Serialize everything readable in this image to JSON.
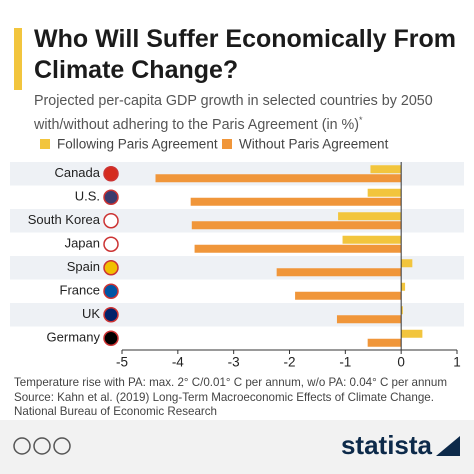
{
  "chart_data": {
    "type": "bar",
    "orientation": "horizontal",
    "title": "Who Will Suffer Economically From Climate Change?",
    "subtitle": "Projected per-capita GDP growth in selected countries by 2050 with/without adhering to the Paris Agreement (in %)",
    "subtitle_marker": "*",
    "categories": [
      "Canada",
      "U.S.",
      "South Korea",
      "Japan",
      "Spain",
      "France",
      "UK",
      "Germany"
    ],
    "series": [
      {
        "name": "Following Paris Agreement",
        "color": "#f2c53d",
        "values": [
          -0.55,
          -0.6,
          -1.13,
          -1.05,
          0.2,
          0.07,
          0.03,
          0.38
        ]
      },
      {
        "name": "Without Paris Agreement",
        "color": "#f0963a",
        "values": [
          -4.4,
          -3.77,
          -3.75,
          -3.7,
          -2.23,
          -1.9,
          -1.15,
          -0.6
        ]
      }
    ],
    "xlim": [
      -5,
      1
    ],
    "xticks": [
      -5,
      -4,
      -3,
      -2,
      -1,
      0,
      1
    ],
    "grid": false,
    "notes": [
      "Temperature rise with PA: max. 2° C/0.01° C per annum, w/o PA: 0.04° C per annum",
      "Source: Kahn et al. (2019) Long-Term Macroeconomic Effects of Climate Change.",
      "National Bureau of Economic Research"
    ],
    "brand": "statista"
  }
}
